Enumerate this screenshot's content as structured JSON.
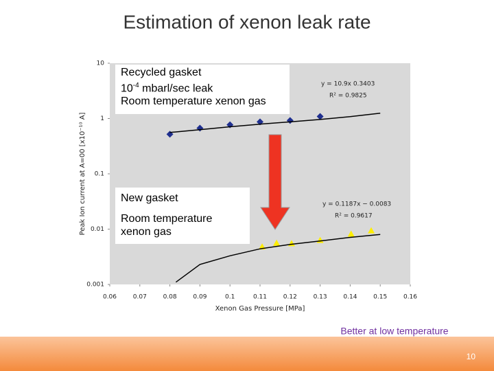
{
  "title": "Estimation of xenon leak rate",
  "chart_data": {
    "type": "scatter",
    "x_label": "Xenon Gas Pressure [MPa]",
    "y_label": "Peak Ion current at A=00 [x10⁻¹⁰ A]",
    "xlim": [
      0.06,
      0.16
    ],
    "xticks": [
      0.06,
      0.07,
      0.08,
      0.09,
      0.1,
      0.11,
      0.12,
      0.13,
      0.14,
      0.15,
      0.16
    ],
    "ylim": [
      0.001,
      10
    ],
    "yticks": [
      0.001,
      0.01,
      0.1,
      1,
      10
    ],
    "y_scale": "log",
    "background": "#d9d9d9",
    "series": [
      {
        "marker": "diamond",
        "color": "#1f2f8f",
        "x": [
          0.08,
          0.09,
          0.1,
          0.11,
          0.12,
          0.13
        ],
        "values": [
          0.52,
          0.67,
          0.77,
          0.87,
          0.92,
          1.09
        ]
      },
      {
        "marker": "triangle",
        "color": "#ffee00",
        "x": [
          0.1107,
          0.1155,
          0.1205,
          0.13,
          0.1403,
          0.147
        ],
        "values": [
          0.0048,
          0.0056,
          0.0055,
          0.0063,
          0.0082,
          0.0094
        ]
      },
      {
        "marker": "none",
        "color": "#000000",
        "x": [
          0.08,
          0.09,
          0.1,
          0.11,
          0.12,
          0.13,
          0.14,
          0.15
        ],
        "values": [
          0.56,
          0.63,
          0.71,
          0.79,
          0.87,
          0.96,
          1.08,
          1.25
        ]
      },
      {
        "marker": "none",
        "color": "#000000",
        "x": [
          0.082,
          0.09,
          0.1,
          0.11,
          0.12,
          0.13,
          0.14,
          0.15
        ],
        "values": [
          0.0011,
          0.0023,
          0.0033,
          0.0044,
          0.0053,
          0.0061,
          0.0071,
          0.008
        ]
      }
    ],
    "fit_labels": [
      "y = 10.9x 0.3403",
      "R² = 0.9825",
      "y = 0.1187x − 0.0083",
      "R² = 0.9617"
    ],
    "box1": [
      "Recycled gasket",
      "10",
      "-4",
      " mbarl/sec leak",
      "Room temperature xenon gas"
    ],
    "box2": [
      "New gasket",
      "Room temperature",
      "xenon gas"
    ]
  },
  "note": "Better at low temperature",
  "page_number": "10"
}
